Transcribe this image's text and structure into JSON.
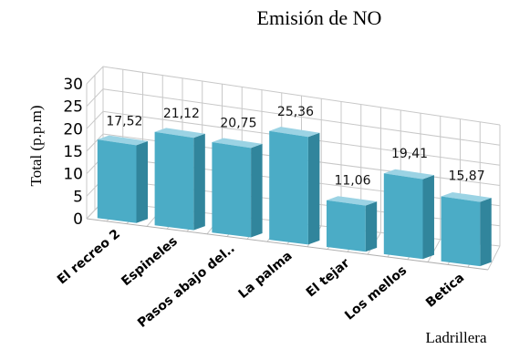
{
  "chart_data": {
    "type": "bar",
    "title": "Emisión de NO",
    "xlabel": "Ladrillera",
    "ylabel": "Total (p.p.m)",
    "categories": [
      "El recreo 2",
      "Espineles",
      "Pasos abajo del..",
      "La palma",
      "El tejar",
      "Los mellos",
      "Betica"
    ],
    "values": [
      17.52,
      21.12,
      20.75,
      25.36,
      11.06,
      19.41,
      15.87
    ],
    "value_labels": [
      "17,52",
      "21,12",
      "20,75",
      "25,36",
      "11,06",
      "19,41",
      "15,87"
    ],
    "ylim": [
      0,
      30
    ],
    "yticks": [
      0,
      5,
      10,
      15,
      20,
      25,
      30
    ],
    "grid": true,
    "legend": "none",
    "colors": {
      "bar_front": "#4bacc6",
      "bar_side": "#31859c",
      "bar_top": "#9bd3e4"
    }
  }
}
